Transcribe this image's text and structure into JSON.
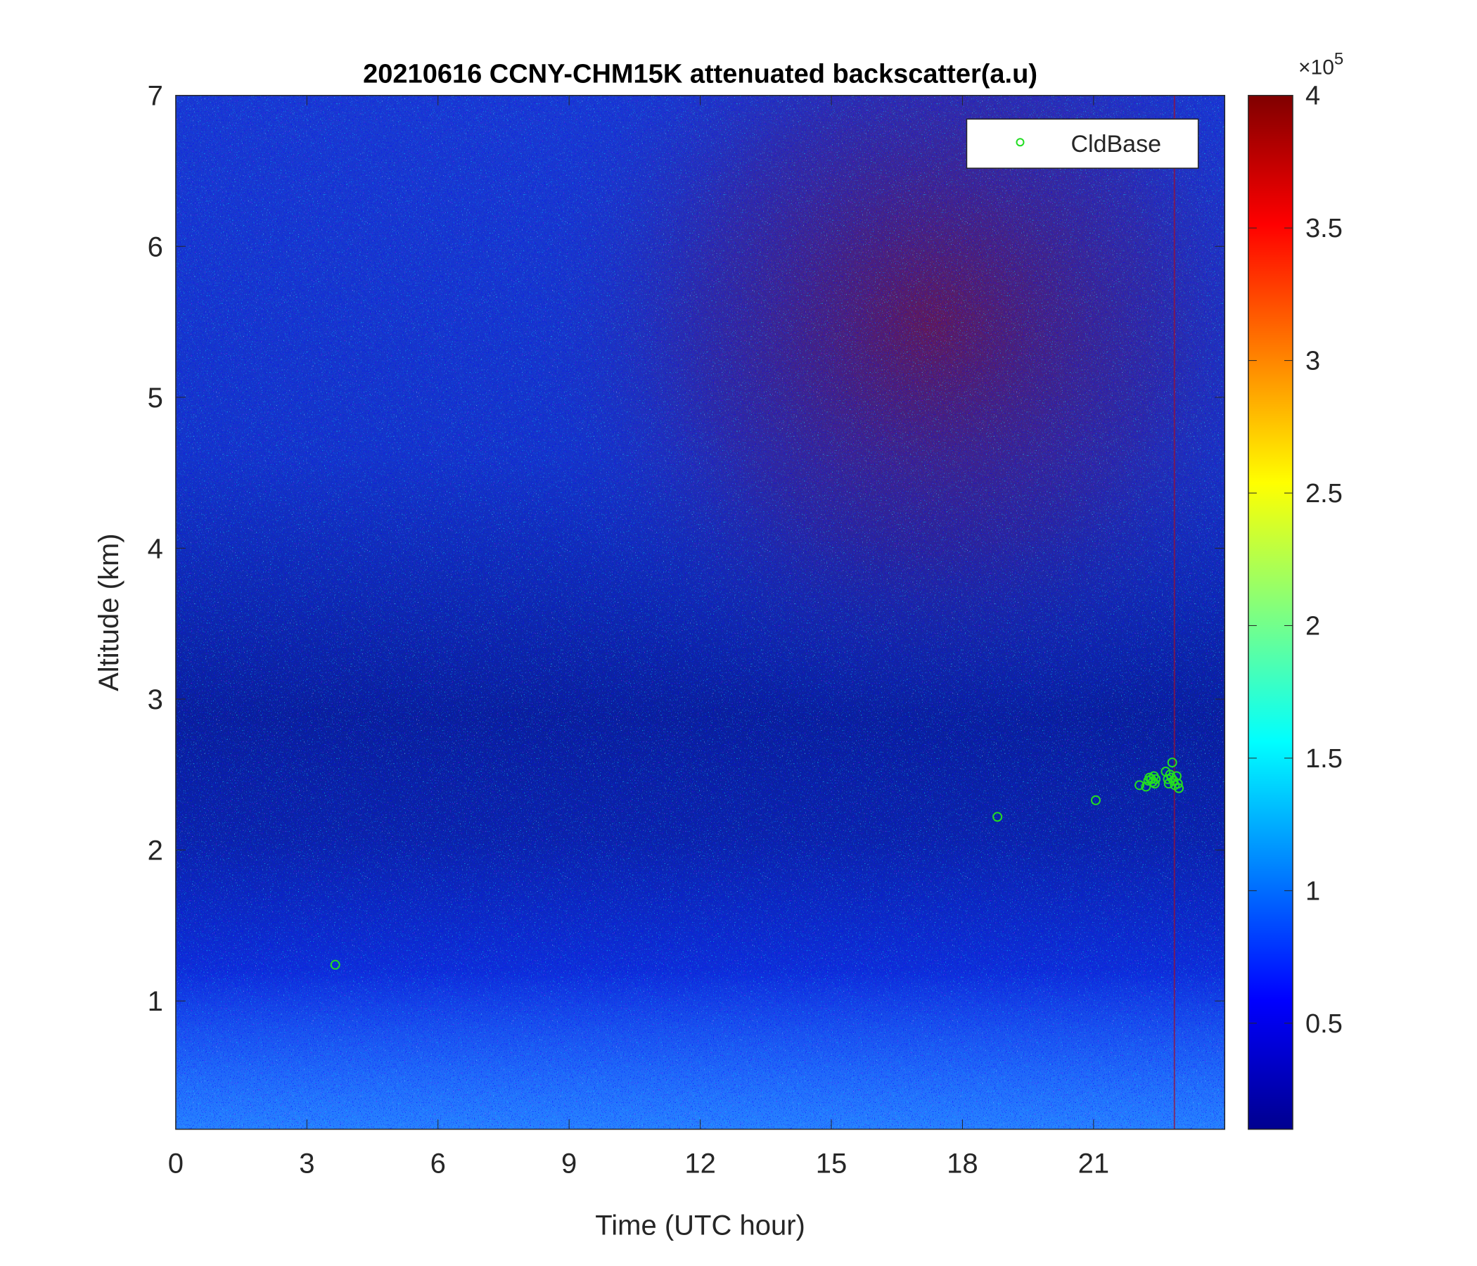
{
  "chart_data": {
    "type": "heatmap",
    "title": "20210616 CCNY-CHM15K attenuated backscatter(a.u)",
    "xlabel": "Time (UTC hour)",
    "ylabel": "Altitude (km)",
    "xlim": [
      0,
      24
    ],
    "ylim": [
      0.15,
      7
    ],
    "x_ticks": [
      0,
      3,
      6,
      9,
      12,
      15,
      18,
      21
    ],
    "x_tick_labels": [
      "0",
      "3",
      "6",
      "9",
      "12",
      "15",
      "18",
      "21"
    ],
    "y_ticks": [
      1,
      2,
      3,
      4,
      5,
      6,
      7
    ],
    "y_tick_labels": [
      "1",
      "2",
      "3",
      "4",
      "5",
      "6",
      "7"
    ],
    "colorbar": {
      "range": [
        10000,
        400000
      ],
      "ticks": [
        50000,
        100000,
        150000,
        200000,
        250000,
        300000,
        350000,
        400000
      ],
      "tick_labels": [
        "0.5",
        "1",
        "1.5",
        "2",
        "2.5",
        "3",
        "3.5",
        "4"
      ],
      "exponent_label": "×10",
      "exponent_power": "5",
      "colormap": "jet",
      "colors": [
        "#00008f",
        "#0000ff",
        "#00ffff",
        "#ffff00",
        "#ff0000",
        "#800000"
      ]
    },
    "legend": {
      "placement": "top-right",
      "entries": [
        {
          "label": "CldBase",
          "marker": "open-circle",
          "color": "#22dd22"
        }
      ]
    },
    "series": [
      {
        "name": "CldBase",
        "kind": "scatter",
        "points": [
          {
            "x": 3.65,
            "y": 1.24
          },
          {
            "x": 18.8,
            "y": 2.22
          },
          {
            "x": 21.05,
            "y": 2.33
          },
          {
            "x": 22.05,
            "y": 2.43
          },
          {
            "x": 22.2,
            "y": 2.42
          },
          {
            "x": 22.25,
            "y": 2.46
          },
          {
            "x": 22.28,
            "y": 2.48
          },
          {
            "x": 22.32,
            "y": 2.47
          },
          {
            "x": 22.35,
            "y": 2.45
          },
          {
            "x": 22.38,
            "y": 2.49
          },
          {
            "x": 22.4,
            "y": 2.44
          },
          {
            "x": 22.42,
            "y": 2.47
          },
          {
            "x": 22.65,
            "y": 2.52
          },
          {
            "x": 22.7,
            "y": 2.47
          },
          {
            "x": 22.72,
            "y": 2.44
          },
          {
            "x": 22.75,
            "y": 2.5
          },
          {
            "x": 22.78,
            "y": 2.48
          },
          {
            "x": 22.8,
            "y": 2.58
          },
          {
            "x": 22.83,
            "y": 2.46
          },
          {
            "x": 22.86,
            "y": 2.43
          },
          {
            "x": 22.9,
            "y": 2.49
          },
          {
            "x": 22.93,
            "y": 2.44
          },
          {
            "x": 22.95,
            "y": 2.41
          }
        ]
      }
    ],
    "grid": false
  }
}
